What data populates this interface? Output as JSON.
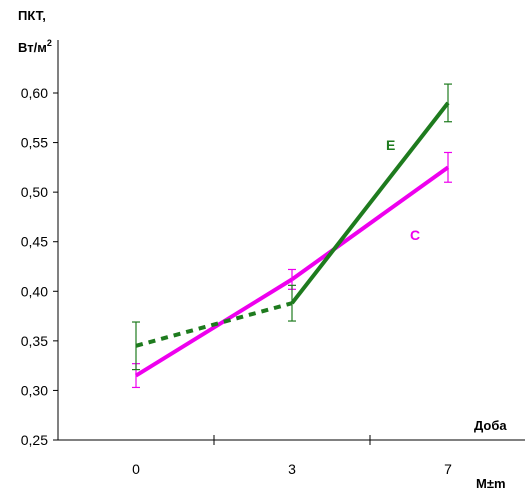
{
  "chart_data": {
    "type": "line",
    "y_label_line1": "ПКТ,",
    "y_label_line2": "Вт/м",
    "y_label_sup": "2",
    "x_label": "Доба",
    "note": "M±m",
    "categories": [
      "0",
      "3",
      "7"
    ],
    "ylim": [
      0.25,
      0.62
    ],
    "yticks": [
      "0,25",
      "0,30",
      "0,35",
      "0,40",
      "0,45",
      "0,50",
      "0,55",
      "0,60"
    ],
    "ytick_values": [
      0.25,
      0.3,
      0.35,
      0.4,
      0.45,
      0.5,
      0.55,
      0.6
    ],
    "grid": false,
    "series": [
      {
        "name": "E",
        "color": "#1e7b1e",
        "values": [
          0.345,
          0.388,
          0.59
        ],
        "errors": [
          0.024,
          0.018,
          0.019
        ],
        "dashed_segments": [
          0
        ]
      },
      {
        "name": "C",
        "color": "#ee00ee",
        "values": [
          0.315,
          0.412,
          0.525
        ],
        "errors": [
          0.012,
          0.01,
          0.015
        ],
        "dashed_segments": []
      }
    ]
  }
}
